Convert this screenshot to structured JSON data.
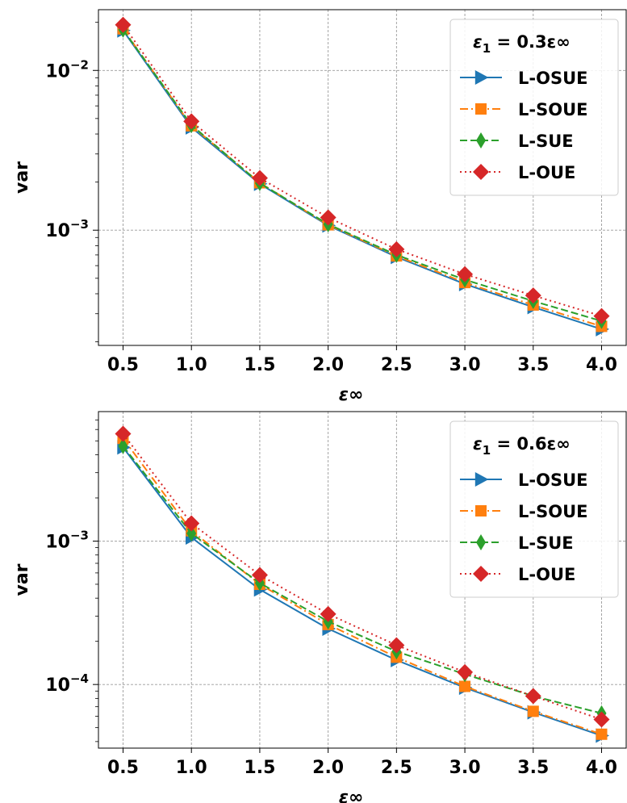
{
  "chart_data": [
    {
      "type": "line",
      "title": "",
      "xlabel": "ε∞",
      "ylabel": "var",
      "yscale": "log",
      "x": [
        0.5,
        1.0,
        1.5,
        2.0,
        2.5,
        3.0,
        3.5,
        4.0
      ],
      "x_ticks": [
        "0.5",
        "1.0",
        "1.5",
        "2.0",
        "2.5",
        "3.0",
        "3.5",
        "4.0"
      ],
      "y_ticks": [
        {
          "value": 0.01,
          "base": "10",
          "exp": "−2"
        },
        {
          "value": 0.001,
          "base": "10",
          "exp": "−3"
        }
      ],
      "ylim": [
        0.00019,
        0.024
      ],
      "xlim": [
        0.32,
        4.18
      ],
      "grid": true,
      "legend_position": "top-right",
      "legend_title": {
        "symbol": "ε",
        "sub": "1",
        "text": " = 0.3ε∞"
      },
      "series": [
        {
          "name": "L-OSUE",
          "color": "#1f77b4",
          "dash": "",
          "marker": "triangle-right",
          "values": [
            0.0178,
            0.0044,
            0.00195,
            0.00107,
            0.00068,
            0.00046,
            0.00033,
            0.00024
          ]
        },
        {
          "name": "L-SOUE",
          "color": "#ff7f0e",
          "dash": "10,4,2,4",
          "marker": "square",
          "values": [
            0.0182,
            0.0045,
            0.00198,
            0.00108,
            0.00069,
            0.00047,
            0.00034,
            0.00025
          ]
        },
        {
          "name": "L-SUE",
          "color": "#2ca02c",
          "dash": "9,4",
          "marker": "thin-diamond",
          "values": [
            0.018,
            0.00455,
            0.00197,
            0.00109,
            0.0007,
            0.00049,
            0.00036,
            0.00027
          ]
        },
        {
          "name": "L-OUE",
          "color": "#d62728",
          "dash": "2,4",
          "marker": "diamond",
          "values": [
            0.0193,
            0.0048,
            0.00212,
            0.0012,
            0.00076,
            0.00053,
            0.00039,
            0.00029
          ]
        }
      ]
    },
    {
      "type": "line",
      "title": "",
      "xlabel": "ε∞",
      "ylabel": "var",
      "yscale": "log",
      "x": [
        0.5,
        1.0,
        1.5,
        2.0,
        2.5,
        3.0,
        3.5,
        4.0
      ],
      "x_ticks": [
        "0.5",
        "1.0",
        "1.5",
        "2.0",
        "2.5",
        "3.0",
        "3.5",
        "4.0"
      ],
      "y_ticks": [
        {
          "value": 0.001,
          "base": "10",
          "exp": "−3"
        },
        {
          "value": 0.0001,
          "base": "10",
          "exp": "−4"
        }
      ],
      "ylim": [
        3.6e-05,
        0.008
      ],
      "xlim": [
        0.32,
        4.18
      ],
      "grid": true,
      "legend_position": "top-right",
      "legend_title": {
        "symbol": "ε",
        "sub": "1",
        "text": " = 0.6ε∞"
      },
      "series": [
        {
          "name": "L-OSUE",
          "color": "#1f77b4",
          "dash": "",
          "marker": "triangle-right",
          "values": [
            0.0045,
            0.00106,
            0.00046,
            0.000245,
            0.000148,
            9.5e-05,
            6.4e-05,
            4.4e-05
          ]
        },
        {
          "name": "L-SOUE",
          "color": "#ff7f0e",
          "dash": "10,4,2,4",
          "marker": "square",
          "values": [
            0.0052,
            0.00118,
            0.0005,
            0.000262,
            0.000155,
            9.7e-05,
            6.5e-05,
            4.5e-05
          ]
        },
        {
          "name": "L-SUE",
          "color": "#2ca02c",
          "dash": "9,4",
          "marker": "thin-diamond",
          "values": [
            0.0046,
            0.00113,
            0.00051,
            0.000275,
            0.00017,
            0.000118,
            8.3e-05,
            6.3e-05
          ]
        },
        {
          "name": "L-OUE",
          "color": "#d62728",
          "dash": "2,4",
          "marker": "diamond",
          "values": [
            0.0056,
            0.00133,
            0.00058,
            0.00031,
            0.000188,
            0.000122,
            8.3e-05,
            5.7e-05
          ]
        }
      ]
    }
  ]
}
